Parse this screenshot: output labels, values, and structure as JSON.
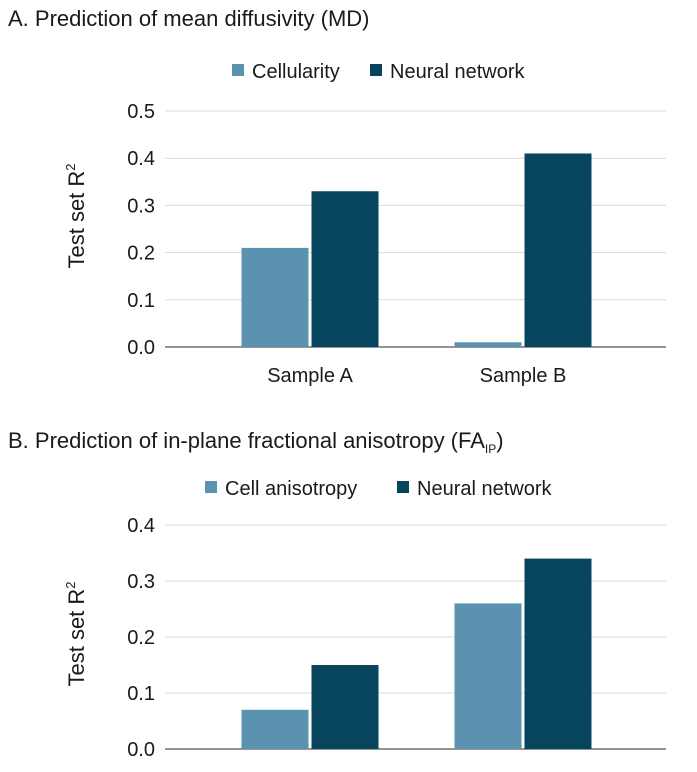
{
  "chart_data": [
    {
      "type": "bar",
      "title": "A. Prediction of mean diffusivity (MD)",
      "categories": [
        "Sample A",
        "Sample B"
      ],
      "series": [
        {
          "name": "Cellularity",
          "values": [
            0.21,
            0.01
          ],
          "color": "#5b92b0"
        },
        {
          "name": "Neural network",
          "values": [
            0.33,
            0.41
          ],
          "color": "#07445e"
        }
      ],
      "ylabel": "Test set R",
      "ylabel_sup": "2",
      "ylim": [
        0,
        0.5
      ],
      "yticks": [
        "0.0",
        "0.1",
        "0.2",
        "0.3",
        "0.4",
        "0.5"
      ],
      "grid": true,
      "legend": "top"
    },
    {
      "type": "bar",
      "title": "B. Prediction of in-plane fractional anisotropy (FA",
      "title_sub": "IP",
      "title_end": ")",
      "categories": [
        "",
        ""
      ],
      "series": [
        {
          "name": "Cell anisotropy",
          "values": [
            0.07,
            0.26
          ],
          "color": "#5b92b0"
        },
        {
          "name": "Neural network",
          "values": [
            0.15,
            0.34
          ],
          "color": "#07445e"
        }
      ],
      "ylabel": "Test set R",
      "ylabel_sup": "2",
      "ylim": [
        0,
        0.4
      ],
      "yticks": [
        "0.0",
        "0.1",
        "0.2",
        "0.3",
        "0.4"
      ],
      "grid": true,
      "legend": "top"
    }
  ]
}
